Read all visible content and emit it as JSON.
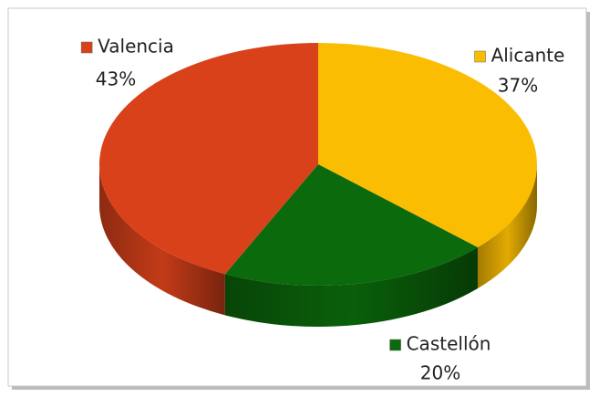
{
  "chart_data": {
    "type": "pie",
    "categories": [
      "Alicante",
      "Castellón",
      "Valencia"
    ],
    "values": [
      37,
      20,
      43
    ],
    "value_labels": [
      "37%",
      "20%",
      "43%"
    ],
    "colors": [
      "#fbbd02",
      "#0b6a0b",
      "#d9411a"
    ]
  }
}
